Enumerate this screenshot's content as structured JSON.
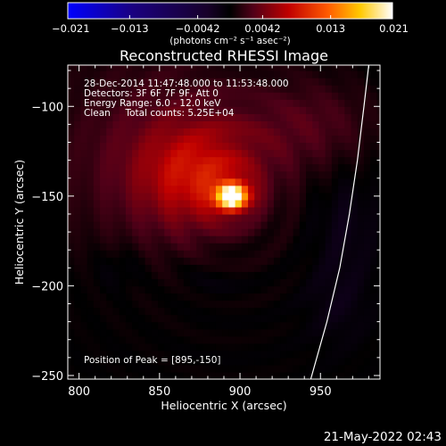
{
  "chart_data": {
    "type": "heatmap",
    "title": "Reconstructed RHESSI Image",
    "xlabel": "Heliocentric X (arcsec)",
    "ylabel": "Heliocentric Y (arcsec)",
    "xlim": [
      793,
      987
    ],
    "ylim": [
      -252,
      -77
    ],
    "x_ticks": [
      800,
      850,
      900,
      950
    ],
    "y_ticks": [
      -100,
      -150,
      -200,
      -250
    ],
    "x_tick_labels": [
      "800",
      "850",
      "900",
      "950"
    ],
    "y_tick_labels": [
      "−100",
      "−150",
      "−200",
      "−250"
    ],
    "colorbar": {
      "range": [
        -0.021,
        0.021
      ],
      "ticks": [
        -0.021,
        -0.013,
        -0.0042,
        0.0042,
        0.013,
        0.021
      ],
      "tick_labels": [
        "−0.021",
        "−0.013",
        "−0.0042",
        "0.0042",
        "0.013",
        "0.021"
      ],
      "units": "(photons cm⁻² s⁻¹ asec⁻²)",
      "colormap": "RHESSI blue-black-red-yellow-white"
    },
    "annotations": [
      "28-Dec-2014 11:47:48.000 to 11:53:48.000",
      "Detectors: 3F 6F 7F 9F, Att 0",
      "Energy Range: 6.0 - 12.0 keV",
      "Clean     Total counts: 5.25E+04"
    ],
    "peak_label": "Position of Peak = [895,-150]",
    "peak": {
      "x": 895,
      "y": -150,
      "value": 0.021
    },
    "sources": [
      {
        "x": 895,
        "y": -150,
        "sx": 7,
        "sy": 5,
        "amp": 0.021
      },
      {
        "x": 875,
        "y": -138,
        "sx": 26,
        "sy": 20,
        "amp": 0.0065
      },
      {
        "x": 850,
        "y": -125,
        "sx": 50,
        "sy": 40,
        "amp": 0.003
      },
      {
        "x": 945,
        "y": -110,
        "sx": 28,
        "sy": 18,
        "amp": 0.0025
      }
    ],
    "negative_regions": [
      {
        "x": 825,
        "y": -190,
        "sx": 12,
        "sy": 9,
        "amp": -0.0012
      },
      {
        "x": 965,
        "y": -165,
        "sx": 14,
        "sy": 22,
        "amp": -0.0015
      },
      {
        "x": 960,
        "y": -210,
        "sx": 14,
        "sy": 16,
        "amp": -0.0012
      },
      {
        "x": 880,
        "y": -195,
        "sx": 15,
        "sy": 10,
        "amp": -0.0008
      }
    ],
    "limb_curve": [
      {
        "x": 980,
        "y": -77
      },
      {
        "x": 977,
        "y": -100
      },
      {
        "x": 973,
        "y": -130
      },
      {
        "x": 968,
        "y": -160
      },
      {
        "x": 962,
        "y": -190
      },
      {
        "x": 954,
        "y": -220
      },
      {
        "x": 944,
        "y": -252
      }
    ],
    "grid": false
  },
  "footer": {
    "timestamp": "21-May-2022 02:43"
  }
}
